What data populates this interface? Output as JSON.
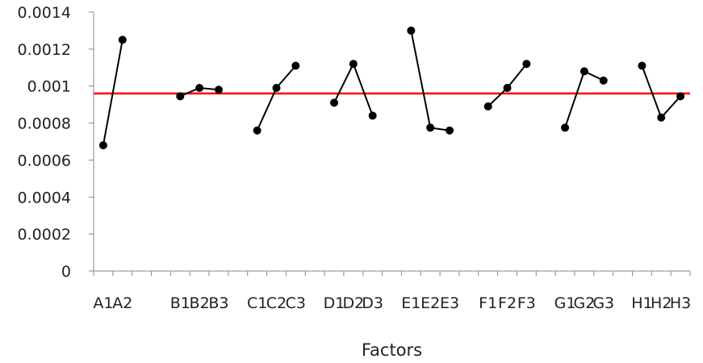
{
  "chart_data": {
    "type": "line",
    "title": "",
    "xlabel": "Factors",
    "ylabel": "",
    "ylim": [
      0,
      0.0014
    ],
    "yticks": [
      0,
      0.0002,
      0.0004,
      0.0006,
      0.0008,
      0.001,
      0.0012,
      0.0014
    ],
    "ytick_labels": [
      "0",
      "0.0002",
      "0.0004",
      "0.0006",
      "0.0008",
      "0.001",
      "0.0012",
      "0.0014"
    ],
    "categories": [
      "A1",
      "A2",
      "",
      "",
      "B1",
      "B2",
      "B3",
      "",
      "C1",
      "C2",
      "C3",
      "",
      "D1",
      "D2",
      "D3",
      "",
      "E1",
      "E2",
      "E3",
      "",
      "F1",
      "F2",
      "F3",
      "",
      "G1",
      "G2",
      "G3",
      "",
      "H1",
      "H2",
      "H3"
    ],
    "grid": false,
    "legend": "none",
    "series": [
      {
        "x": [
          "A1",
          "A2"
        ],
        "values": [
          0.00068,
          0.00125
        ]
      },
      {
        "x": [
          "B1",
          "B2",
          "B3"
        ],
        "values": [
          0.000945,
          0.00099,
          0.00098
        ]
      },
      {
        "x": [
          "C1",
          "C2",
          "C3"
        ],
        "values": [
          0.00076,
          0.00099,
          0.00111
        ]
      },
      {
        "x": [
          "D1",
          "D2",
          "D3"
        ],
        "values": [
          0.00091,
          0.00112,
          0.00084
        ]
      },
      {
        "x": [
          "E1",
          "E2",
          "E3"
        ],
        "values": [
          0.0013,
          0.000775,
          0.00076
        ]
      },
      {
        "x": [
          "F1",
          "F2",
          "F3"
        ],
        "values": [
          0.00089,
          0.00099,
          0.00112
        ]
      },
      {
        "x": [
          "G1",
          "G2",
          "G3"
        ],
        "values": [
          0.000775,
          0.00108,
          0.00103
        ]
      },
      {
        "x": [
          "H1",
          "H2",
          "H3"
        ],
        "values": [
          0.00111,
          0.00083,
          0.000945
        ]
      }
    ],
    "reference_line": {
      "y": 0.00096,
      "color": "#ff0000"
    },
    "colors": {
      "series": "#000000",
      "reference": "#ff0000",
      "axis": "#888888"
    }
  }
}
